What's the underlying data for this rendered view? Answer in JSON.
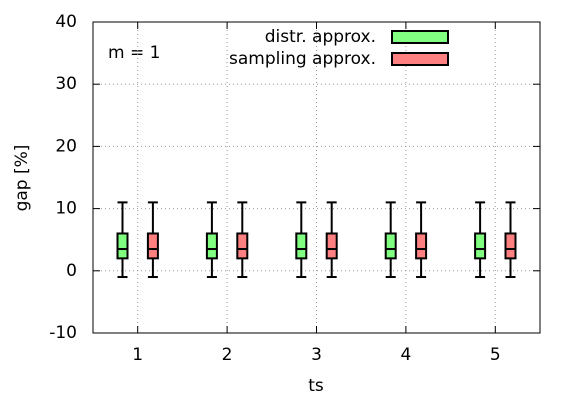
{
  "chart_data": {
    "type": "box",
    "annotation": "m = 1",
    "xlabel": "ts",
    "ylabel": "gap [%]",
    "x": [
      1,
      2,
      3,
      4,
      5
    ],
    "xlim": [
      0.5,
      5.5
    ],
    "xticks": [
      1,
      2,
      3,
      4,
      5
    ],
    "ylim": [
      -10,
      40
    ],
    "yticks": [
      -10,
      0,
      10,
      20,
      30,
      40
    ],
    "grid": true,
    "legend": "top-right",
    "series": [
      {
        "name": "distr. approx.",
        "color": "#80ff80",
        "min": [
          -1,
          -1,
          -1,
          -1,
          -1
        ],
        "q1": [
          2,
          2,
          2,
          2,
          2
        ],
        "median": [
          3.5,
          3.5,
          3.5,
          3.5,
          3.5
        ],
        "q3": [
          6,
          6,
          6,
          6,
          6
        ],
        "max": [
          11,
          11,
          11,
          11,
          11
        ]
      },
      {
        "name": "sampling approx.",
        "color": "#ff8080",
        "min": [
          -1,
          -1,
          -1,
          -1,
          -1
        ],
        "q1": [
          2,
          2,
          2,
          2,
          2
        ],
        "median": [
          3.5,
          3.5,
          3.5,
          3.5,
          3.5
        ],
        "q3": [
          6,
          6,
          6,
          6,
          6
        ],
        "max": [
          11,
          11,
          11,
          11,
          11
        ]
      }
    ]
  }
}
